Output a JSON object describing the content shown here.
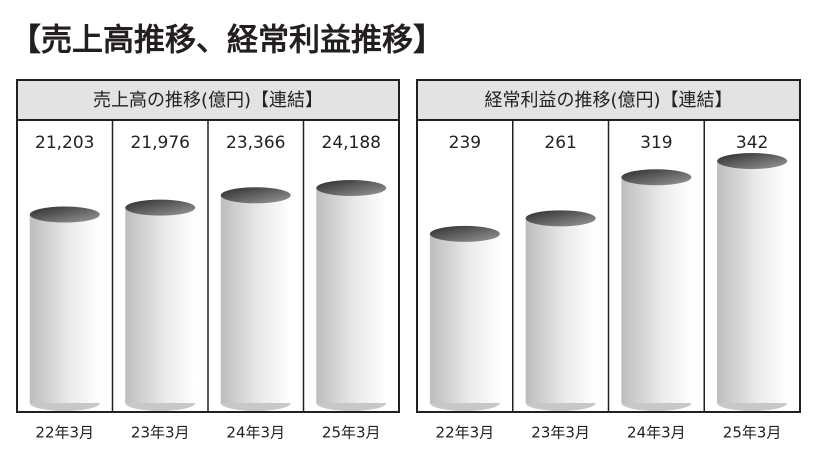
{
  "title": "【売上高推移、経常利益推移】",
  "chart_data": [
    {
      "type": "bar",
      "title": "売上高の推移(億円)【連結】",
      "categories": [
        "22年3月",
        "23年3月",
        "24年3月",
        "25年3月"
      ],
      "values": [
        21203,
        21976,
        23366,
        24188
      ],
      "value_labels": [
        "21,203",
        "21,976",
        "23,366",
        "24,188"
      ]
    },
    {
      "type": "bar",
      "title": "経常利益の推移(億円)【連結】",
      "categories": [
        "22年3月",
        "23年3月",
        "24年3月",
        "25年3月"
      ],
      "values": [
        239,
        261,
        319,
        342
      ]
    }
  ]
}
